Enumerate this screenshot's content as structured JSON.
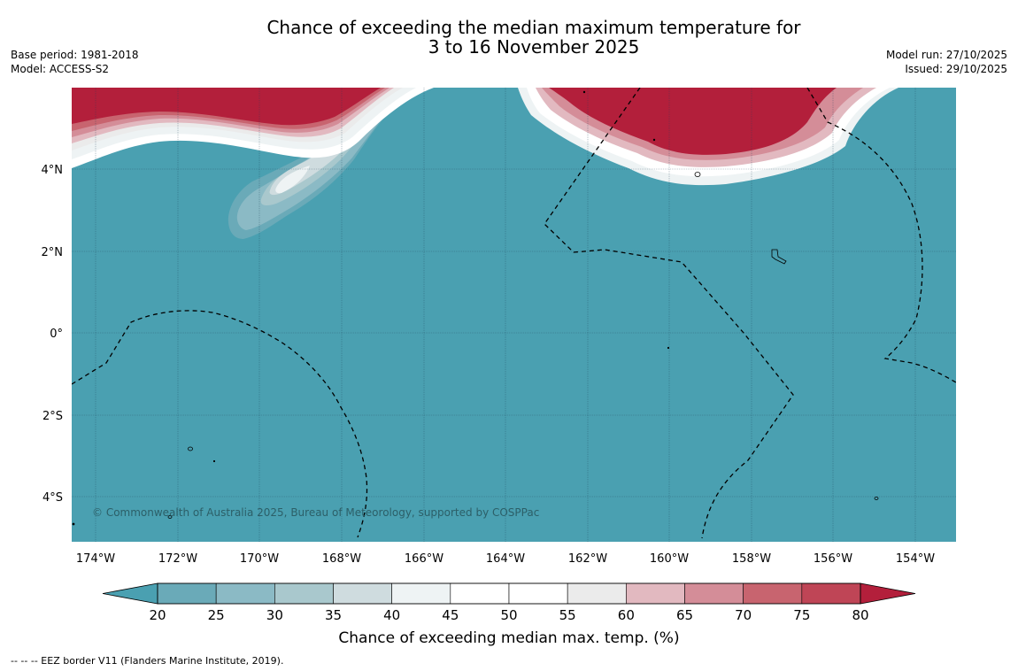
{
  "title": {
    "line1": "Chance of exceeding the median maximum temperature for",
    "line2": "3 to 16 November 2025"
  },
  "meta_left": {
    "base_period": "Base period: 1981-2018",
    "model": "Model: ACCESS-S2"
  },
  "meta_right": {
    "model_run": "Model run: 27/10/2025",
    "issued": "Issued: 29/10/2025"
  },
  "map": {
    "lon_ticks": [
      "174°W",
      "172°W",
      "170°W",
      "168°W",
      "166°W",
      "164°W",
      "162°W",
      "160°W",
      "158°W",
      "156°W",
      "154°W"
    ],
    "lat_ticks": [
      "4°N",
      "2°N",
      "0°",
      "2°S",
      "4°S"
    ],
    "copyright": "© Commonwealth of Australia 2025, Bureau of Meteorology, supported by COSPPac",
    "colors": {
      "below": "#4aa0b1",
      "above": "#b31f3b"
    }
  },
  "colorbar": {
    "ticks": [
      "20",
      "25",
      "30",
      "35",
      "40",
      "45",
      "50",
      "55",
      "60",
      "65",
      "70",
      "75",
      "80"
    ],
    "colors": [
      "#6aaab8",
      "#8bbac5",
      "#a9c8cd",
      "#cfdcdf",
      "#eef3f4",
      "#ffffff",
      "#ffffff",
      "#ebebeb",
      "#e2b9c0",
      "#d48d98",
      "#c8646f",
      "#bf4556"
    ],
    "low_color": "#4aa0b1",
    "high_color": "#b31f3b",
    "label": "Chance of exceeding median max. temp. (%)"
  },
  "footer": {
    "eez": "--  --  -- EEZ border V11 (Flanders Marine Institute, 2019)."
  }
}
